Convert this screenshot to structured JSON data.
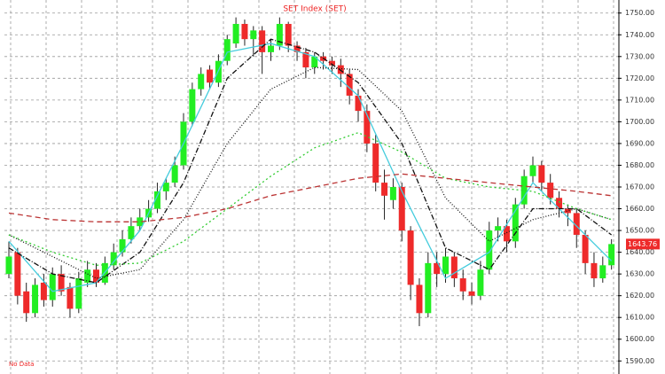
{
  "chart_data": {
    "type": "candlestick",
    "title": "SET Index (SET)",
    "note": "No Data",
    "up_color": "#22ee22",
    "down_color": "#ee2a2a",
    "candles": [
      [
        1630,
        1645,
        1628,
        1638
      ],
      [
        1640,
        1642,
        1616,
        1620
      ],
      [
        1622,
        1626,
        1608,
        1612
      ],
      [
        1612,
        1628,
        1610,
        1625
      ],
      [
        1626,
        1630,
        1615,
        1618
      ],
      [
        1618,
        1633,
        1615,
        1630
      ],
      [
        1630,
        1634,
        1620,
        1622
      ],
      [
        1624,
        1626,
        1610,
        1614
      ],
      [
        1614,
        1631,
        1612,
        1628
      ],
      [
        1626,
        1636,
        1624,
        1632
      ],
      [
        1632,
        1635,
        1624,
        1626
      ],
      [
        1626,
        1638,
        1625,
        1635
      ],
      [
        1634,
        1644,
        1632,
        1640
      ],
      [
        1640,
        1650,
        1638,
        1646
      ],
      [
        1646,
        1656,
        1644,
        1652
      ],
      [
        1652,
        1660,
        1650,
        1656
      ],
      [
        1656,
        1664,
        1654,
        1660
      ],
      [
        1660,
        1672,
        1658,
        1668
      ],
      [
        1668,
        1674,
        1664,
        1672
      ],
      [
        1672,
        1684,
        1670,
        1680
      ],
      [
        1680,
        1704,
        1678,
        1700
      ],
      [
        1700,
        1718,
        1698,
        1715
      ],
      [
        1715,
        1725,
        1712,
        1722
      ],
      [
        1724,
        1726,
        1715,
        1718
      ],
      [
        1718,
        1731,
        1716,
        1728
      ],
      [
        1728,
        1740,
        1726,
        1738
      ],
      [
        1736,
        1748,
        1734,
        1745
      ],
      [
        1745,
        1747,
        1735,
        1738
      ],
      [
        1738,
        1744,
        1730,
        1742
      ],
      [
        1742,
        1744,
        1722,
        1732
      ],
      [
        1732,
        1738,
        1728,
        1735
      ],
      [
        1735,
        1748,
        1733,
        1745
      ],
      [
        1745,
        1746,
        1732,
        1735
      ],
      [
        1735,
        1737,
        1728,
        1732
      ],
      [
        1732,
        1734,
        1720,
        1725
      ],
      [
        1725,
        1732,
        1722,
        1730
      ],
      [
        1730,
        1732,
        1724,
        1728
      ],
      [
        1728,
        1730,
        1722,
        1726
      ],
      [
        1726,
        1729,
        1716,
        1722
      ],
      [
        1722,
        1724,
        1708,
        1712
      ],
      [
        1712,
        1715,
        1700,
        1705
      ],
      [
        1705,
        1708,
        1686,
        1690
      ],
      [
        1690,
        1694,
        1668,
        1672
      ],
      [
        1672,
        1678,
        1655,
        1666
      ],
      [
        1664,
        1674,
        1660,
        1670
      ],
      [
        1670,
        1672,
        1645,
        1650
      ],
      [
        1650,
        1652,
        1618,
        1625
      ],
      [
        1625,
        1628,
        1606,
        1612
      ],
      [
        1612,
        1640,
        1610,
        1635
      ],
      [
        1635,
        1640,
        1624,
        1630
      ],
      [
        1630,
        1642,
        1626,
        1638
      ],
      [
        1638,
        1640,
        1624,
        1628
      ],
      [
        1628,
        1632,
        1618,
        1622
      ],
      [
        1622,
        1626,
        1616,
        1620
      ],
      [
        1620,
        1636,
        1618,
        1632
      ],
      [
        1632,
        1654,
        1630,
        1650
      ],
      [
        1650,
        1656,
        1645,
        1652
      ],
      [
        1652,
        1655,
        1640,
        1645
      ],
      [
        1645,
        1665,
        1642,
        1662
      ],
      [
        1662,
        1678,
        1660,
        1675
      ],
      [
        1675,
        1684,
        1672,
        1680
      ],
      [
        1680,
        1682,
        1668,
        1672
      ],
      [
        1672,
        1676,
        1662,
        1665
      ],
      [
        1665,
        1668,
        1656,
        1660
      ],
      [
        1660,
        1662,
        1652,
        1658
      ],
      [
        1658,
        1660,
        1642,
        1648
      ],
      [
        1648,
        1650,
        1630,
        1635
      ],
      [
        1635,
        1640,
        1624,
        1628
      ],
      [
        1628,
        1638,
        1626,
        1634
      ],
      [
        1634,
        1646,
        1632,
        1643.76
      ]
    ],
    "overlays": [
      {
        "color": "#44ccdd",
        "dash": "none",
        "x": [
          0,
          5,
          10,
          15,
          20,
          25,
          30,
          35,
          40,
          45,
          50,
          55,
          60,
          65,
          69
        ],
        "values": [
          1645,
          1622,
          1626,
          1650,
          1690,
          1732,
          1736,
          1730,
          1712,
          1668,
          1628,
          1640,
          1672,
          1652,
          1636
        ]
      },
      {
        "color": "#111111",
        "dash": "6 2 1 2",
        "x": [
          0,
          5,
          10,
          15,
          20,
          25,
          30,
          35,
          40,
          45,
          50,
          55,
          60,
          65,
          69
        ],
        "values": [
          1642,
          1630,
          1626,
          1640,
          1672,
          1720,
          1738,
          1732,
          1718,
          1690,
          1642,
          1632,
          1660,
          1660,
          1648
        ]
      },
      {
        "color": "#111111",
        "dash": "1 2",
        "x": [
          0,
          5,
          10,
          15,
          20,
          25,
          30,
          35,
          40,
          45,
          50,
          55,
          60,
          65,
          69
        ],
        "values": [
          1648,
          1638,
          1628,
          1632,
          1655,
          1690,
          1715,
          1725,
          1724,
          1705,
          1665,
          1645,
          1655,
          1660,
          1655
        ]
      },
      {
        "color": "#33cc33",
        "dash": "2 3",
        "x": [
          0,
          5,
          10,
          15,
          20,
          25,
          30,
          35,
          40,
          45,
          50,
          55,
          60,
          65,
          69
        ],
        "values": [
          1648,
          1640,
          1634,
          1635,
          1645,
          1660,
          1675,
          1688,
          1695,
          1686,
          1674,
          1670,
          1668,
          1660,
          1655
        ]
      },
      {
        "color": "#bb3333",
        "dash": "6 4",
        "x": [
          0,
          5,
          10,
          15,
          20,
          25,
          30,
          35,
          40,
          45,
          50,
          55,
          60,
          65,
          69
        ],
        "values": [
          1658,
          1655,
          1654,
          1654,
          1656,
          1660,
          1666,
          1670,
          1674,
          1676,
          1674,
          1672,
          1670,
          1668,
          1666
        ]
      }
    ],
    "ylim": [
      1584,
      1756
    ],
    "yticks": [
      {
        "value": 1590,
        "label": "1590.00"
      },
      {
        "value": 1600,
        "label": "1600.00"
      },
      {
        "value": 1610,
        "label": "1610.00"
      },
      {
        "value": 1620,
        "label": "1620.00"
      },
      {
        "value": 1630,
        "label": "1630.00"
      },
      {
        "value": 1640,
        "label": "1640.00"
      },
      {
        "value": 1650,
        "label": "1650.00"
      },
      {
        "value": 1660,
        "label": "1660.00"
      },
      {
        "value": 1670,
        "label": "1670.00"
      },
      {
        "value": 1680,
        "label": "1680.00"
      },
      {
        "value": 1690,
        "label": "1690.00"
      },
      {
        "value": 1700,
        "label": "1700.00"
      },
      {
        "value": 1710,
        "label": "1710.00"
      },
      {
        "value": 1720,
        "label": "1720.00"
      },
      {
        "value": 1730,
        "label": "1730.00"
      },
      {
        "value": 1740,
        "label": "1740.00"
      },
      {
        "value": 1750,
        "label": "1750.00"
      }
    ],
    "grid": true
  }
}
